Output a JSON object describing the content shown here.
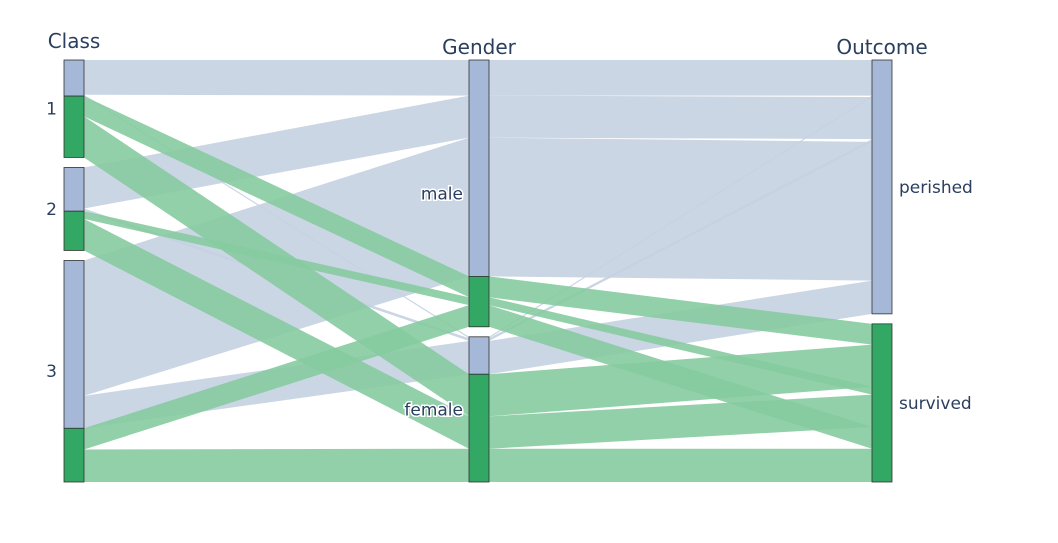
{
  "chart_data": {
    "type": "parallel_categories",
    "dimensions": [
      {
        "name": "Class",
        "categories": [
          "1",
          "2",
          "3"
        ]
      },
      {
        "name": "Gender",
        "categories": [
          "male",
          "female"
        ]
      },
      {
        "name": "Outcome",
        "categories": [
          "perished",
          "survived"
        ]
      }
    ],
    "color_groups": {
      "0": "perished",
      "1": "survived"
    },
    "colors": {
      "0": "#a5b8d7",
      "1": "#33a864",
      "ribbon0": "#c5d2e2",
      "ribbon1": "#86cba0",
      "text": "#2a3f5f"
    },
    "paths": [
      {
        "class": "1",
        "gender": "male",
        "outcome": "perished",
        "color": 0,
        "count": 77
      },
      {
        "class": "1",
        "gender": "female",
        "outcome": "perished",
        "color": 0,
        "count": 3
      },
      {
        "class": "1",
        "gender": "male",
        "outcome": "survived",
        "color": 1,
        "count": 45
      },
      {
        "class": "1",
        "gender": "female",
        "outcome": "survived",
        "color": 1,
        "count": 91
      },
      {
        "class": "2",
        "gender": "male",
        "outcome": "perished",
        "color": 0,
        "count": 91
      },
      {
        "class": "2",
        "gender": "female",
        "outcome": "perished",
        "color": 0,
        "count": 6
      },
      {
        "class": "2",
        "gender": "male",
        "outcome": "survived",
        "color": 1,
        "count": 17
      },
      {
        "class": "2",
        "gender": "female",
        "outcome": "survived",
        "color": 1,
        "count": 70
      },
      {
        "class": "3",
        "gender": "male",
        "outcome": "perished",
        "color": 0,
        "count": 300
      },
      {
        "class": "3",
        "gender": "female",
        "outcome": "perished",
        "color": 0,
        "count": 72
      },
      {
        "class": "3",
        "gender": "male",
        "outcome": "survived",
        "color": 1,
        "count": 47
      },
      {
        "class": "3",
        "gender": "female",
        "outcome": "survived",
        "color": 1,
        "count": 72
      }
    ]
  }
}
